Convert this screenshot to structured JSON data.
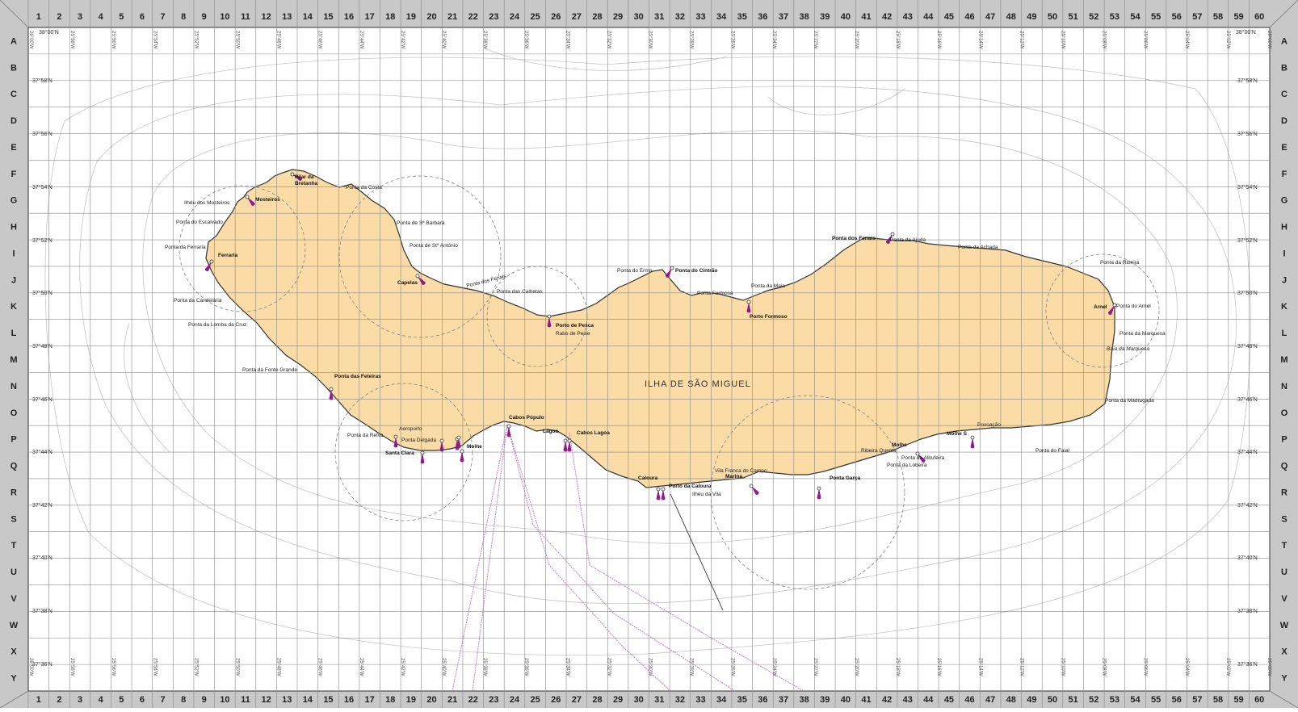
{
  "map": {
    "island_name": "ILHA DE SÃO MIGUEL",
    "columns": [
      "1",
      "2",
      "3",
      "4",
      "5",
      "6",
      "7",
      "8",
      "9",
      "10",
      "11",
      "12",
      "13",
      "14",
      "15",
      "16",
      "17",
      "18",
      "19",
      "20",
      "21",
      "22",
      "23",
      "24",
      "25",
      "26",
      "27",
      "28",
      "29",
      "30",
      "31",
      "32",
      "33",
      "34",
      "35",
      "36",
      "37",
      "38",
      "39",
      "40",
      "41",
      "42",
      "43",
      "44",
      "45",
      "46",
      "47",
      "48",
      "49",
      "50",
      "51",
      "52",
      "53",
      "54",
      "55",
      "56",
      "57",
      "58",
      "59",
      "60"
    ],
    "rows": [
      "A",
      "B",
      "C",
      "D",
      "E",
      "F",
      "G",
      "H",
      "I",
      "J",
      "K",
      "L",
      "M",
      "N",
      "O",
      "P",
      "Q",
      "R",
      "S",
      "T",
      "U",
      "V",
      "W",
      "X",
      "Y"
    ],
    "lat_labels": [
      "38°00'N",
      "37°58'N",
      "37°56'N",
      "37°54'N",
      "37°52'N",
      "37°50'N",
      "37°48'N",
      "37°46'N",
      "37°44'N",
      "37°42'N",
      "37°40'N",
      "37°38'N",
      "37°36'N"
    ],
    "lon_labels": [
      "26°00'W",
      "25°58'W",
      "25°56'W",
      "25°54'W",
      "25°52'W",
      "25°50'W",
      "25°48'W",
      "25°46'W",
      "25°44'W",
      "25°42'W",
      "25°40'W",
      "25°38'W",
      "25°36'W",
      "25°34'W",
      "25°32'W",
      "25°30'W",
      "25°28'W",
      "25°26'W",
      "25°24'W",
      "25°22'W",
      "25°20'W",
      "25°18'W",
      "25°16'W",
      "25°14'W",
      "25°12'W",
      "25°10'W",
      "25°08'W",
      "25°06'W",
      "25°04'W",
      "25°02'W",
      "25°00'W"
    ],
    "places_bold": [
      "Pilar da",
      "Bretanha",
      "Mosteiros",
      "Ferraria",
      "Capelas",
      "Ponta do Cintrão",
      "Porto de Pesca",
      "Ponta dos Fenais",
      "Porto Formoso",
      "Arnel",
      "Ponta das Feteiras",
      "Cabos Pópulo",
      "Lagoa",
      "Cabos Lagoa",
      "Santa Clara",
      "Molhe",
      "Caloura",
      "Porto da Caloura",
      "Marina",
      "Ponta Garça",
      "Molhe",
      "Molhe S"
    ],
    "places": [
      "Ponta da Costa",
      "Ilhéu dos Mosteiros",
      "Ponta do Escalvado",
      "Ponta da Ferraria",
      "Ponta de Sª Bárbara",
      "Ponta de Stº António",
      "Ponta da Candelária",
      "Ponta da Lomba da Cruz",
      "Ponta dos Fenais",
      "Ponta das Calhetas",
      "Rabo de Peixe",
      "Ponta do Ermo",
      "Ponta Formosa",
      "Ponta da Maia",
      "Ponta da Ajuda",
      "Ponta da Achada",
      "Ponta da Ribeira",
      "Ponta do Arnel",
      "Ponta da Marquesa",
      "Baía da Marquesa",
      "Ponta da Fonte Grande",
      "Aeroporto",
      "Ponta da Relva",
      "Ponta Delgada",
      "Vila Franca do Campo",
      "Ilhéu da Vila",
      "Ribeira Quente",
      "Ponta da Albufeira",
      "Ponta da Lobeira",
      "Povoação",
      "Ponta do Faial",
      "Ponta da Madrugada"
    ]
  },
  "colors": {
    "land": "#fbdca6",
    "coast": "#333333",
    "grid": "#8a8a8a",
    "contour": "#c6c6c6",
    "marker": "#8e1a8e",
    "frame": "#c8c8c8",
    "route": "#c080c0"
  }
}
